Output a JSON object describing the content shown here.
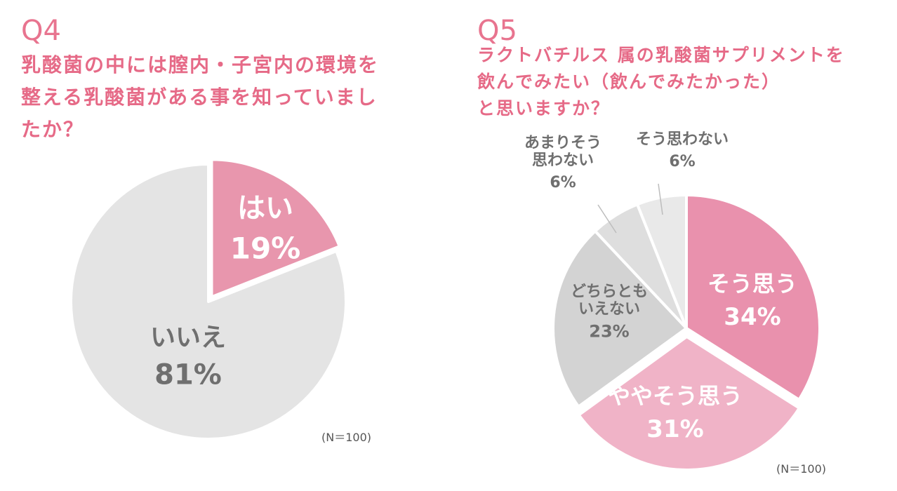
{
  "q4": {
    "number": "Q4",
    "question_lines": [
      "乳酸菌の中には膣内・子宮内の環境を",
      "整える乳酸菌がある事を知っていまし",
      "たか？"
    ],
    "note": "(N＝100)"
  },
  "q5": {
    "number": "Q5",
    "question_lines": [
      "ラクトバチルス 属の乳酸菌サプリメントを",
      "飲んでみたい（飲んでみたかった）",
      "と思いますか？"
    ],
    "note": "(N＝100)"
  },
  "chart_data": [
    {
      "type": "pie",
      "title": "乳酸菌の中には膣内・子宮内の環境を整える乳酸菌がある事を知っていましたか？",
      "slices": [
        {
          "label": "はい",
          "value": 19,
          "value_label": "19%",
          "color": "#e896ad"
        },
        {
          "label": "いいえ",
          "value": 81,
          "value_label": "81%",
          "color": "#e4e4e4"
        }
      ],
      "start": "12 o'clock, clockwise",
      "exploded": "はい"
    },
    {
      "type": "pie",
      "title": "ラクトバチルス 属の乳酸菌サプリメントを飲んでみたい（飲んでみたかった）と思いますか？",
      "slices": [
        {
          "label": "そう思う",
          "value": 34,
          "value_label": "34%",
          "color": "#e991ad"
        },
        {
          "label": "ややそう思う",
          "value": 31,
          "value_label": "31%",
          "color": "#f0b3c7"
        },
        {
          "label": "どちらとも\nいえない",
          "value": 23,
          "value_label": "23%",
          "color": "#d3d3d3"
        },
        {
          "label": "あまりそう\n思わない",
          "value": 6,
          "value_label": "6%",
          "color": "#dedede"
        },
        {
          "label": "そう思わない",
          "value": 6,
          "value_label": "6%",
          "color": "#e9e9e9"
        }
      ],
      "start": "12 o'clock, clockwise",
      "exploded": "ややそう思う"
    }
  ],
  "colors": {
    "heading": "#e66a87",
    "label_dark": "#6f6f6f",
    "label_light": "#ffffff"
  }
}
